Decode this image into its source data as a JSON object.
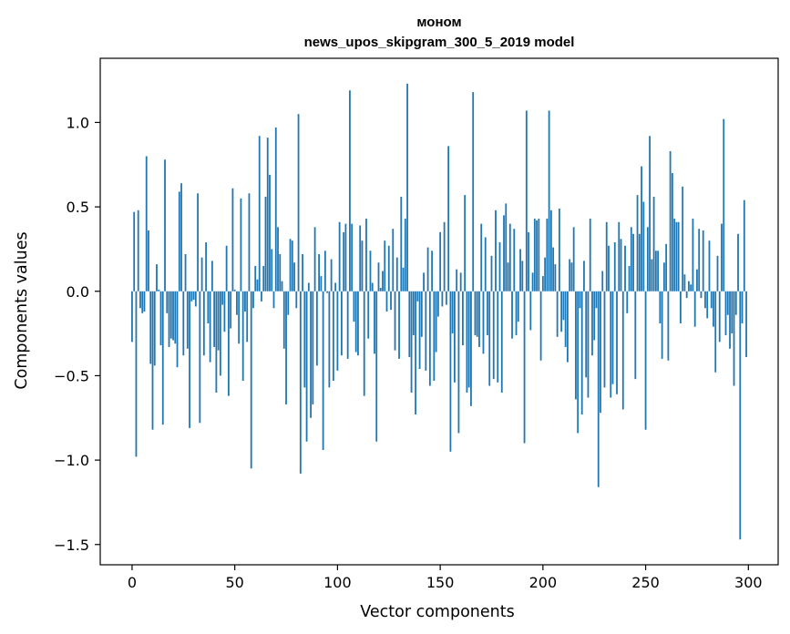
{
  "chart_data": {
    "type": "bar",
    "title": "моном",
    "subtitle": "news_upos_skipgram_300_5_2019 model",
    "xlabel": "Vector components",
    "ylabel": "Components values",
    "xlim": [
      -15.5,
      314.5
    ],
    "ylim": [
      -1.62,
      1.38
    ],
    "xticks": [
      0,
      50,
      100,
      150,
      200,
      250,
      300
    ],
    "xtick_labels": [
      "0",
      "50",
      "100",
      "150",
      "200",
      "250",
      "300"
    ],
    "yticks": [
      -1.5,
      -1.0,
      -0.5,
      0.0,
      0.5,
      1.0
    ],
    "ytick_labels": [
      "−1.5",
      "−1.0",
      "−0.5",
      "0.0",
      "0.5",
      "1.0"
    ],
    "bar_color": "#1f77b4",
    "grid": false,
    "x": "0..299 (component index)",
    "values": [
      -0.3,
      0.47,
      -0.98,
      0.48,
      -0.1,
      -0.13,
      -0.12,
      0.8,
      0.36,
      -0.43,
      -0.82,
      -0.44,
      0.16,
      0.01,
      -0.32,
      -0.79,
      0.78,
      -0.13,
      -0.33,
      -0.28,
      -0.29,
      -0.31,
      -0.45,
      0.59,
      0.64,
      -0.38,
      0.22,
      -0.34,
      -0.81,
      -0.06,
      -0.05,
      -0.09,
      0.58,
      -0.78,
      0.2,
      -0.38,
      0.29,
      -0.19,
      -0.42,
      0.18,
      -0.33,
      -0.6,
      -0.35,
      -0.5,
      -0.08,
      -0.24,
      0.27,
      -0.62,
      -0.22,
      0.61,
      0.01,
      -0.14,
      -0.31,
      0.55,
      -0.53,
      -0.12,
      -0.3,
      0.58,
      -1.05,
      -0.1,
      0.15,
      0.07,
      0.92,
      -0.06,
      0.15,
      0.56,
      0.91,
      0.69,
      0.25,
      -0.1,
      0.97,
      0.38,
      0.22,
      0.06,
      -0.34,
      -0.67,
      -0.14,
      0.31,
      0.3,
      0.17,
      -0.1,
      1.05,
      -1.08,
      0.22,
      -0.57,
      -0.89,
      0.05,
      -0.75,
      -0.67,
      0.38,
      -0.44,
      0.22,
      0.09,
      -0.94,
      0.24,
      -0.01,
      -0.57,
      0.19,
      -0.53,
      0.05,
      -0.47,
      0.41,
      -0.38,
      0.35,
      0.4,
      -0.4,
      1.19,
      0.4,
      -0.18,
      -0.36,
      -0.38,
      0.39,
      0.3,
      -0.62,
      0.43,
      -0.28,
      0.24,
      0.05,
      -0.37,
      -0.89,
      0.17,
      0.02,
      0.12,
      0.3,
      -0.12,
      0.27,
      -0.11,
      0.37,
      -0.35,
      0.2,
      -0.4,
      0.56,
      0.14,
      0.43,
      1.23,
      -0.39,
      -0.6,
      -0.26,
      -0.73,
      -0.06,
      -0.46,
      -0.27,
      0.11,
      -0.47,
      0.26,
      -0.56,
      0.24,
      -0.53,
      -0.36,
      -0.15,
      0.35,
      -0.09,
      0.41,
      -0.08,
      0.86,
      -0.95,
      -0.25,
      -0.54,
      0.13,
      -0.84,
      0.11,
      -0.32,
      0.57,
      -0.6,
      -0.57,
      -0.68,
      1.18,
      -0.26,
      -0.27,
      -0.33,
      0.4,
      -0.37,
      0.32,
      -0.26,
      -0.56,
      0.21,
      -0.52,
      0.48,
      -0.54,
      0.29,
      -0.6,
      0.45,
      0.52,
      0.17,
      0.4,
      -0.28,
      0.37,
      -0.26,
      -0.18,
      0.25,
      0.18,
      -0.9,
      1.07,
      0.35,
      -0.23,
      0.11,
      0.43,
      0.42,
      0.43,
      -0.41,
      0.09,
      0.2,
      0.43,
      1.07,
      0.48,
      0.26,
      0.16,
      -0.27,
      0.49,
      -0.24,
      -0.17,
      -0.33,
      -0.42,
      0.19,
      0.17,
      0.38,
      -0.64,
      -0.84,
      -0.1,
      -0.73,
      0.18,
      -0.51,
      -0.63,
      0.43,
      -0.38,
      -0.29,
      -0.1,
      -1.16,
      -0.72,
      0.12,
      -0.57,
      0.41,
      0.27,
      -0.63,
      -0.55,
      0.29,
      -0.61,
      0.41,
      0.31,
      -0.7,
      0.27,
      -0.13,
      0.15,
      0.38,
      0.34,
      -0.52,
      0.57,
      0.34,
      0.74,
      0.53,
      -0.82,
      0.38,
      0.92,
      0.19,
      0.56,
      0.24,
      0.24,
      -0.19,
      -0.4,
      0.17,
      0.28,
      -0.41,
      0.83,
      0.7,
      0.43,
      0.41,
      0.41,
      -0.19,
      0.62,
      0.1,
      -0.04,
      0.06,
      0.04,
      0.43,
      -0.21,
      0.13,
      0.37,
      -0.04,
      0.36,
      -0.1,
      -0.16,
      0.3,
      -0.1,
      -0.21,
      -0.48,
      0.21,
      -0.3,
      0.4,
      1.02,
      -0.26,
      -0.14,
      -0.34,
      -0.25,
      -0.56,
      -0.14,
      0.34,
      -1.47,
      -0.19,
      0.54,
      -0.39
    ]
  }
}
